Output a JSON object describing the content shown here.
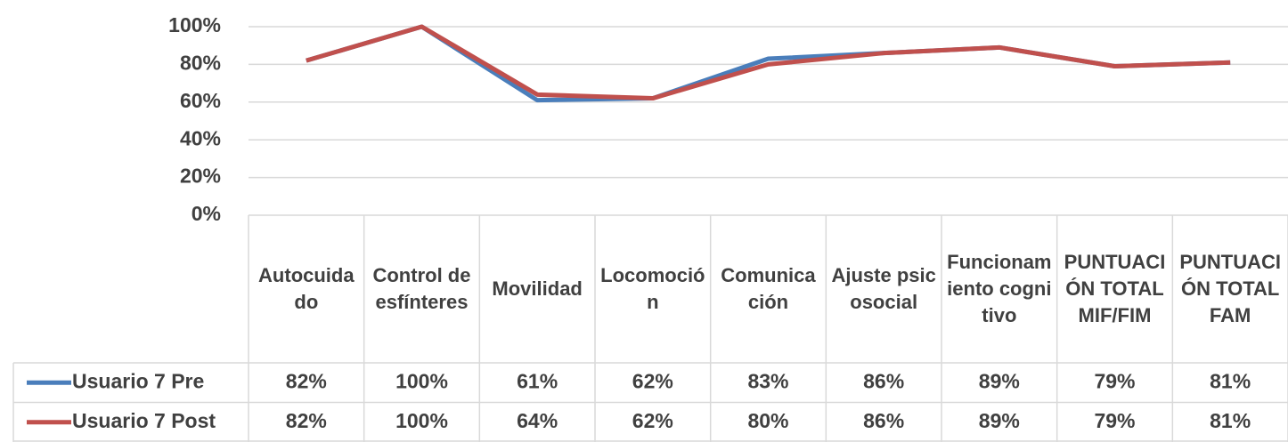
{
  "chart_data": {
    "type": "line",
    "categories": [
      "Autocuidado",
      "Control de esfínteres",
      "Movilidad",
      "Locomoción",
      "Comunicación",
      "Ajuste psicosocial",
      "Funcionamiento cognitivo",
      "PUNTUACIÓN TOTAL MIF/FIM",
      "PUNTUACIÓN TOTAL FAM"
    ],
    "series": [
      {
        "name": "Usuario 7 Pre",
        "color": "#4a7ebb",
        "values": [
          82,
          100,
          61,
          62,
          83,
          86,
          89,
          79,
          81
        ],
        "value_labels": [
          "82%",
          "100%",
          "61%",
          "62%",
          "83%",
          "86%",
          "89%",
          "79%",
          "81%"
        ]
      },
      {
        "name": "Usuario 7 Post",
        "color": "#c0504d",
        "values": [
          82,
          100,
          64,
          62,
          80,
          86,
          89,
          79,
          81
        ],
        "value_labels": [
          "82%",
          "100%",
          "64%",
          "62%",
          "80%",
          "86%",
          "89%",
          "79%",
          "81%"
        ]
      }
    ],
    "ylim": [
      0,
      100
    ],
    "yticks": [
      {
        "value": 0,
        "label": "0%"
      },
      {
        "value": 20,
        "label": "20%"
      },
      {
        "value": 40,
        "label": "40%"
      },
      {
        "value": 60,
        "label": "60%"
      },
      {
        "value": 80,
        "label": "80%"
      },
      {
        "value": 100,
        "label": "100%"
      }
    ],
    "grid": true,
    "data_table": true
  }
}
